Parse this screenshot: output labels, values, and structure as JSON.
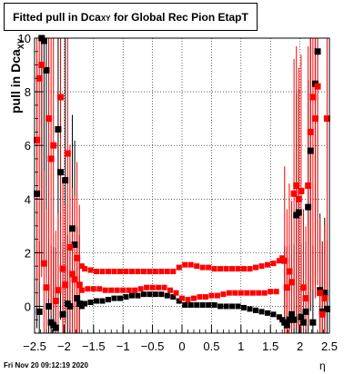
{
  "title": {
    "main": "Fitted pull in Dca",
    "sub": "XY",
    "rest": " for Global Rec Pion EtapT"
  },
  "ylabel": {
    "main": "pull in Dca",
    "sub": "XY"
  },
  "xlabel": "η",
  "footer": "Fri Nov 20 09:12:19 2020",
  "chart_data": {
    "type": "scatter",
    "xlim": [
      -2.5,
      2.5
    ],
    "ylim": [
      -1,
      10
    ],
    "x_ticks": [
      "−2.5",
      "−2",
      "−1.5",
      "−1",
      "−0.5",
      "0",
      "0.5",
      "1",
      "1.5",
      "2",
      "2.5"
    ],
    "x_tick_values": [
      -2.5,
      -2,
      -1.5,
      -1,
      -0.5,
      0,
      0.5,
      1,
      1.5,
      2,
      2.5
    ],
    "y_ticks": [
      "0",
      "2",
      "4",
      "6",
      "8",
      "10"
    ],
    "y_tick_values": [
      0,
      2,
      4,
      6,
      8,
      10
    ],
    "grid": true,
    "colors": {
      "black_series": "#000000",
      "red_series": "#ff0000"
    },
    "series": [
      {
        "color": "#000000",
        "points": [
          {
            "x": -2.46,
            "y": 4.2
          },
          {
            "x": -2.42,
            "y": -0.2
          },
          {
            "x": -2.38,
            "y": 10.0
          },
          {
            "x": -2.34,
            "y": 9.9
          },
          {
            "x": -2.3,
            "y": 8.8
          },
          {
            "x": -2.26,
            "y": 0.0
          },
          {
            "x": -2.22,
            "y": -0.6
          },
          {
            "x": -2.18,
            "y": -0.7
          },
          {
            "x": -2.14,
            "y": -0.8
          },
          {
            "x": -2.1,
            "y": 6.6
          },
          {
            "x": -2.06,
            "y": 5.0
          },
          {
            "x": -2.02,
            "y": -0.3
          },
          {
            "x": -1.98,
            "y": 4.7
          },
          {
            "x": -1.94,
            "y": 0.1
          },
          {
            "x": -1.9,
            "y": 0.0
          },
          {
            "x": -1.86,
            "y": 2.9
          },
          {
            "x": -1.82,
            "y": 2.3
          },
          {
            "x": -1.78,
            "y": 0.3
          },
          {
            "x": -1.74,
            "y": 0.1
          },
          {
            "x": -1.7,
            "y": 0.0
          },
          {
            "x": -1.65,
            "y": 0.1
          },
          {
            "x": -1.55,
            "y": 0.15
          },
          {
            "x": -1.45,
            "y": 0.2
          },
          {
            "x": -1.35,
            "y": 0.2
          },
          {
            "x": -1.25,
            "y": 0.25
          },
          {
            "x": -1.15,
            "y": 0.3
          },
          {
            "x": -1.05,
            "y": 0.3
          },
          {
            "x": -0.95,
            "y": 0.35
          },
          {
            "x": -0.85,
            "y": 0.4
          },
          {
            "x": -0.75,
            "y": 0.4
          },
          {
            "x": -0.65,
            "y": 0.45
          },
          {
            "x": -0.55,
            "y": 0.45
          },
          {
            "x": -0.45,
            "y": 0.45
          },
          {
            "x": -0.35,
            "y": 0.45
          },
          {
            "x": -0.25,
            "y": 0.4
          },
          {
            "x": -0.15,
            "y": 0.35
          },
          {
            "x": -0.05,
            "y": 0.2
          },
          {
            "x": 0.05,
            "y": 0.05
          },
          {
            "x": 0.15,
            "y": 0.05
          },
          {
            "x": 0.25,
            "y": 0.05
          },
          {
            "x": 0.35,
            "y": 0.05
          },
          {
            "x": 0.45,
            "y": 0.05
          },
          {
            "x": 0.55,
            "y": 0.05
          },
          {
            "x": 0.65,
            "y": 0.0
          },
          {
            "x": 0.75,
            "y": 0.0
          },
          {
            "x": 0.85,
            "y": 0.0
          },
          {
            "x": 0.95,
            "y": 0.0
          },
          {
            "x": 1.05,
            "y": -0.05
          },
          {
            "x": 1.15,
            "y": -0.1
          },
          {
            "x": 1.25,
            "y": -0.15
          },
          {
            "x": 1.35,
            "y": -0.2
          },
          {
            "x": 1.45,
            "y": -0.25
          },
          {
            "x": 1.55,
            "y": -0.3
          },
          {
            "x": 1.65,
            "y": -0.4
          },
          {
            "x": 1.7,
            "y": -0.5
          },
          {
            "x": 1.74,
            "y": -0.6
          },
          {
            "x": 1.78,
            "y": -0.7
          },
          {
            "x": 1.82,
            "y": -0.5
          },
          {
            "x": 1.86,
            "y": -0.3
          },
          {
            "x": 1.9,
            "y": -0.5
          },
          {
            "x": 1.94,
            "y": 3.4
          },
          {
            "x": 1.98,
            "y": 3.5
          },
          {
            "x": 2.02,
            "y": -0.4
          },
          {
            "x": 2.06,
            "y": -0.6
          },
          {
            "x": 2.1,
            "y": -0.2
          },
          {
            "x": 2.14,
            "y": 3.7
          },
          {
            "x": 2.18,
            "y": 5.8
          },
          {
            "x": 2.22,
            "y": -0.6
          },
          {
            "x": 2.26,
            "y": 8.3
          },
          {
            "x": 2.3,
            "y": 9.5
          },
          {
            "x": 2.34,
            "y": 0.6
          },
          {
            "x": 2.38,
            "y": -0.2
          },
          {
            "x": 2.42,
            "y": 0.5
          },
          {
            "x": 2.46,
            "y": -0.1
          }
        ]
      },
      {
        "color": "#ff0000",
        "points": [
          {
            "x": -2.46,
            "y": 6.2
          },
          {
            "x": -2.42,
            "y": 8.5
          },
          {
            "x": -2.38,
            "y": 9.0
          },
          {
            "x": -2.34,
            "y": 1.6
          },
          {
            "x": -2.3,
            "y": 0.7
          },
          {
            "x": -2.26,
            "y": 7.0
          },
          {
            "x": -2.22,
            "y": 5.5
          },
          {
            "x": -2.18,
            "y": 6.0
          },
          {
            "x": -2.14,
            "y": 0.2
          },
          {
            "x": -2.1,
            "y": 0.6
          },
          {
            "x": -2.06,
            "y": 7.8
          },
          {
            "x": -2.02,
            "y": 1.4
          },
          {
            "x": -1.98,
            "y": 0.8
          },
          {
            "x": -1.94,
            "y": 5.7
          },
          {
            "x": -1.9,
            "y": 2.2
          },
          {
            "x": -1.86,
            "y": 1.2
          },
          {
            "x": -1.82,
            "y": 1.0
          },
          {
            "x": -1.78,
            "y": 1.8
          },
          {
            "x": -1.74,
            "y": 0.8
          },
          {
            "x": -1.7,
            "y": 1.5
          },
          {
            "x": -1.65,
            "y": 1.4
          },
          {
            "x": -1.55,
            "y": 1.35
          },
          {
            "x": -1.45,
            "y": 1.3
          },
          {
            "x": -1.35,
            "y": 1.3
          },
          {
            "x": -1.25,
            "y": 1.3
          },
          {
            "x": -1.15,
            "y": 1.3
          },
          {
            "x": -1.05,
            "y": 1.3
          },
          {
            "x": -0.95,
            "y": 1.3
          },
          {
            "x": -0.85,
            "y": 1.3
          },
          {
            "x": -0.75,
            "y": 1.3
          },
          {
            "x": -0.65,
            "y": 1.3
          },
          {
            "x": -0.55,
            "y": 1.3
          },
          {
            "x": -0.45,
            "y": 1.3
          },
          {
            "x": -0.35,
            "y": 1.3
          },
          {
            "x": -0.25,
            "y": 1.3
          },
          {
            "x": -0.15,
            "y": 1.3
          },
          {
            "x": -0.05,
            "y": 1.45
          },
          {
            "x": 0.05,
            "y": 1.55
          },
          {
            "x": 0.15,
            "y": 1.55
          },
          {
            "x": 0.25,
            "y": 1.5
          },
          {
            "x": 0.35,
            "y": 1.45
          },
          {
            "x": 0.45,
            "y": 1.45
          },
          {
            "x": 0.55,
            "y": 1.4
          },
          {
            "x": 0.65,
            "y": 1.4
          },
          {
            "x": 0.75,
            "y": 1.4
          },
          {
            "x": 0.85,
            "y": 1.4
          },
          {
            "x": 0.95,
            "y": 1.4
          },
          {
            "x": 1.05,
            "y": 1.4
          },
          {
            "x": 1.15,
            "y": 1.4
          },
          {
            "x": 1.25,
            "y": 1.45
          },
          {
            "x": 1.35,
            "y": 1.5
          },
          {
            "x": 1.45,
            "y": 1.55
          },
          {
            "x": 1.55,
            "y": 1.6
          },
          {
            "x": 1.65,
            "y": 1.7
          },
          {
            "x": 1.7,
            "y": 1.8
          },
          {
            "x": 1.74,
            "y": 1.7
          },
          {
            "x": 1.78,
            "y": 0.7
          },
          {
            "x": 1.82,
            "y": 1.3
          },
          {
            "x": 1.86,
            "y": 0.9
          },
          {
            "x": 1.9,
            "y": 4.2
          },
          {
            "x": 1.94,
            "y": 4.5
          },
          {
            "x": 1.98,
            "y": 4.0
          },
          {
            "x": 2.02,
            "y": 4.3
          },
          {
            "x": 2.06,
            "y": 0.7
          },
          {
            "x": 2.1,
            "y": 0.3
          },
          {
            "x": 2.14,
            "y": 4.5
          },
          {
            "x": 2.18,
            "y": 6.5
          },
          {
            "x": 2.22,
            "y": 7.8
          },
          {
            "x": 2.26,
            "y": 7.0
          },
          {
            "x": 2.3,
            "y": 8.2
          },
          {
            "x": 2.34,
            "y": 0.5
          },
          {
            "x": 2.38,
            "y": -0.3
          },
          {
            "x": 2.42,
            "y": 0.3
          },
          {
            "x": 2.46,
            "y": 7.0
          }
        ]
      },
      {
        "color": "#ff0000",
        "points": [
          {
            "x": -1.7,
            "y": 0.6
          },
          {
            "x": -1.6,
            "y": 0.65
          },
          {
            "x": -1.5,
            "y": 0.65
          },
          {
            "x": -1.4,
            "y": 0.65
          },
          {
            "x": -1.3,
            "y": 0.6
          },
          {
            "x": -1.2,
            "y": 0.6
          },
          {
            "x": -1.1,
            "y": 0.6
          },
          {
            "x": -1.0,
            "y": 0.6
          },
          {
            "x": -0.9,
            "y": 0.6
          },
          {
            "x": -0.8,
            "y": 0.6
          },
          {
            "x": -0.7,
            "y": 0.65
          },
          {
            "x": -0.6,
            "y": 0.7
          },
          {
            "x": -0.5,
            "y": 0.7
          },
          {
            "x": -0.4,
            "y": 0.7
          },
          {
            "x": -0.3,
            "y": 0.7
          },
          {
            "x": -0.2,
            "y": 0.6
          },
          {
            "x": -0.1,
            "y": 0.5
          },
          {
            "x": 0.0,
            "y": 0.3
          },
          {
            "x": 0.1,
            "y": 0.25
          },
          {
            "x": 0.2,
            "y": 0.3
          },
          {
            "x": 0.3,
            "y": 0.35
          },
          {
            "x": 0.4,
            "y": 0.35
          },
          {
            "x": 0.5,
            "y": 0.4
          },
          {
            "x": 0.6,
            "y": 0.4
          },
          {
            "x": 0.7,
            "y": 0.45
          },
          {
            "x": 0.8,
            "y": 0.5
          },
          {
            "x": 0.9,
            "y": 0.5
          },
          {
            "x": 1.0,
            "y": 0.5
          },
          {
            "x": 1.1,
            "y": 0.5
          },
          {
            "x": 1.2,
            "y": 0.5
          },
          {
            "x": 1.3,
            "y": 0.5
          },
          {
            "x": 1.4,
            "y": 0.5
          },
          {
            "x": 1.5,
            "y": 0.55
          },
          {
            "x": 1.6,
            "y": 0.55
          }
        ]
      }
    ]
  }
}
